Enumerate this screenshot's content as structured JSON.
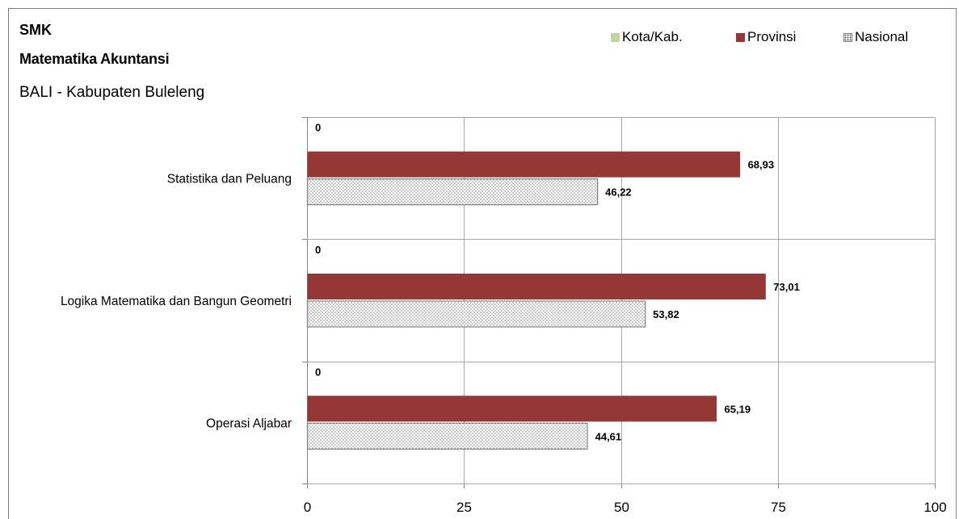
{
  "header": {
    "level": "SMK",
    "subject": "Matematika Akuntansi",
    "region": "BALI - Kabupaten Buleleng"
  },
  "colors": {
    "kota": "#c3d69b",
    "provinsi": "#953735",
    "nasional_pattern": "dotted",
    "grid": "#a6a6a6",
    "frame": "#808080"
  },
  "chart_data": {
    "type": "bar",
    "orientation": "horizontal",
    "categories": [
      "Statistika dan Peluang",
      "Logika Matematika dan Bangun Geometri",
      "Operasi Aljabar"
    ],
    "series": [
      {
        "name": "Kota/Kab.",
        "values": [
          0,
          0,
          0
        ],
        "labels": [
          "0",
          "0",
          "0"
        ]
      },
      {
        "name": "Provinsi",
        "values": [
          68.93,
          73.01,
          65.19
        ],
        "labels": [
          "68,93",
          "73,01",
          "65,19"
        ]
      },
      {
        "name": "Nasional",
        "values": [
          46.22,
          53.82,
          44.61
        ],
        "labels": [
          "46,22",
          "53,82",
          "44,61"
        ]
      }
    ],
    "xlim": [
      0,
      100
    ],
    "xticks": [
      0,
      25,
      50,
      75,
      100
    ],
    "xtick_labels": [
      "0",
      "25",
      "50",
      "75",
      "100"
    ],
    "grid": true,
    "legend_position": "top-right"
  }
}
